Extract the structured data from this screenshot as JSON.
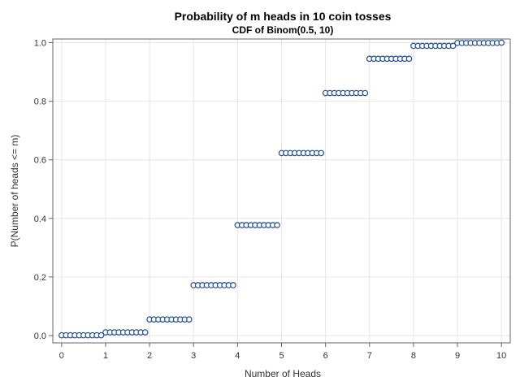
{
  "chart_data": {
    "type": "scatter",
    "title": "Probability of m heads in 10 coin tosses",
    "subtitle": "CDF of Binom(0.5, 10)",
    "xlabel": "Number of Heads",
    "ylabel": "P(Number of heads <= m)",
    "xlim": [
      -0.2,
      10.2
    ],
    "ylim": [
      -0.025,
      1.0125
    ],
    "xticks": [
      "0",
      "1",
      "2",
      "3",
      "4",
      "5",
      "6",
      "7",
      "8",
      "9",
      "10"
    ],
    "yticks": [
      "0.0",
      "0.2",
      "0.4",
      "0.6",
      "0.8",
      "1.0"
    ],
    "grid": true,
    "legend": "none",
    "x_step": 0.1,
    "step_levels": [
      0.001,
      0.011,
      0.055,
      0.172,
      0.377,
      0.623,
      0.828,
      0.945,
      0.989,
      0.999,
      1.0
    ],
    "series": [
      {
        "marker": "open-circle",
        "color": "#1f4e9c",
        "x": [
          0,
          0.1,
          0.2,
          0.3,
          0.4,
          0.5,
          0.6,
          0.7,
          0.8,
          0.9,
          1,
          1.1,
          1.2,
          1.3,
          1.4,
          1.5,
          1.6,
          1.7,
          1.8,
          1.9,
          2,
          2.1,
          2.2,
          2.3,
          2.4,
          2.5,
          2.6,
          2.7,
          2.8,
          2.9,
          3,
          3.1,
          3.2,
          3.3,
          3.4,
          3.5,
          3.6,
          3.7,
          3.8,
          3.9,
          4,
          4.1,
          4.2,
          4.3,
          4.4,
          4.5,
          4.6,
          4.7,
          4.8,
          4.9,
          5,
          5.1,
          5.2,
          5.3,
          5.4,
          5.5,
          5.6,
          5.7,
          5.8,
          5.9,
          6,
          6.1,
          6.2,
          6.3,
          6.4,
          6.5,
          6.6,
          6.7,
          6.8,
          6.9,
          7,
          7.1,
          7.2,
          7.3,
          7.4,
          7.5,
          7.6,
          7.7,
          7.8,
          7.9,
          8,
          8.1,
          8.2,
          8.3,
          8.4,
          8.5,
          8.6,
          8.7,
          8.8,
          8.9,
          9,
          9.1,
          9.2,
          9.3,
          9.4,
          9.5,
          9.6,
          9.7,
          9.8,
          9.9,
          10
        ]
      }
    ]
  }
}
